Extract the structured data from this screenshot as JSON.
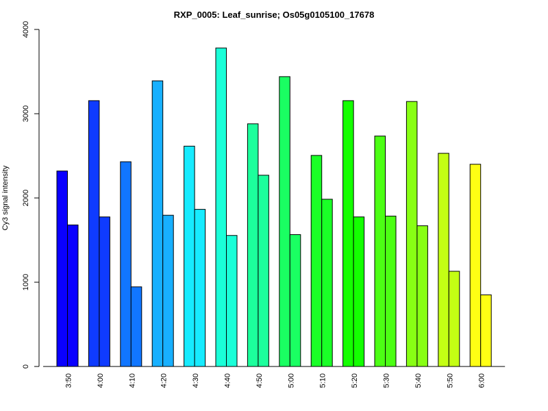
{
  "chart_data": {
    "type": "bar",
    "title": "RXP_0005: Leaf_sunrise; Os05g0105100_17678",
    "xlabel": "",
    "ylabel": "Cy3 signal intensity",
    "ylim": [
      0,
      4000
    ],
    "yticks": [
      0,
      1000,
      2000,
      3000,
      4000
    ],
    "grid": false,
    "categories": [
      "3:50",
      "4:00",
      "4:10",
      "4:20",
      "4:30",
      "4:40",
      "4:50",
      "5:00",
      "5:10",
      "5:20",
      "5:30",
      "5:40",
      "5:50",
      "6:00"
    ],
    "colors": [
      "#0A00FF",
      "#0F3BFF",
      "#1176FF",
      "#18B0FF",
      "#17EBFF",
      "#1AFFD8",
      "#1CFF9C",
      "#1AFF62",
      "#1AFF27",
      "#14FF00",
      "#4CFF14",
      "#88FF14",
      "#C4FF14",
      "#FFFF14"
    ],
    "series": [
      {
        "values": [
          2320,
          3155,
          2430,
          3390,
          2615,
          3780,
          2880,
          3440,
          2505,
          3155,
          2735,
          3145,
          2530,
          2400
        ]
      },
      {
        "values": [
          1680,
          1775,
          945,
          1795,
          1865,
          1555,
          2270,
          1565,
          1985,
          1775,
          1785,
          1670,
          1130,
          850
        ]
      }
    ]
  }
}
